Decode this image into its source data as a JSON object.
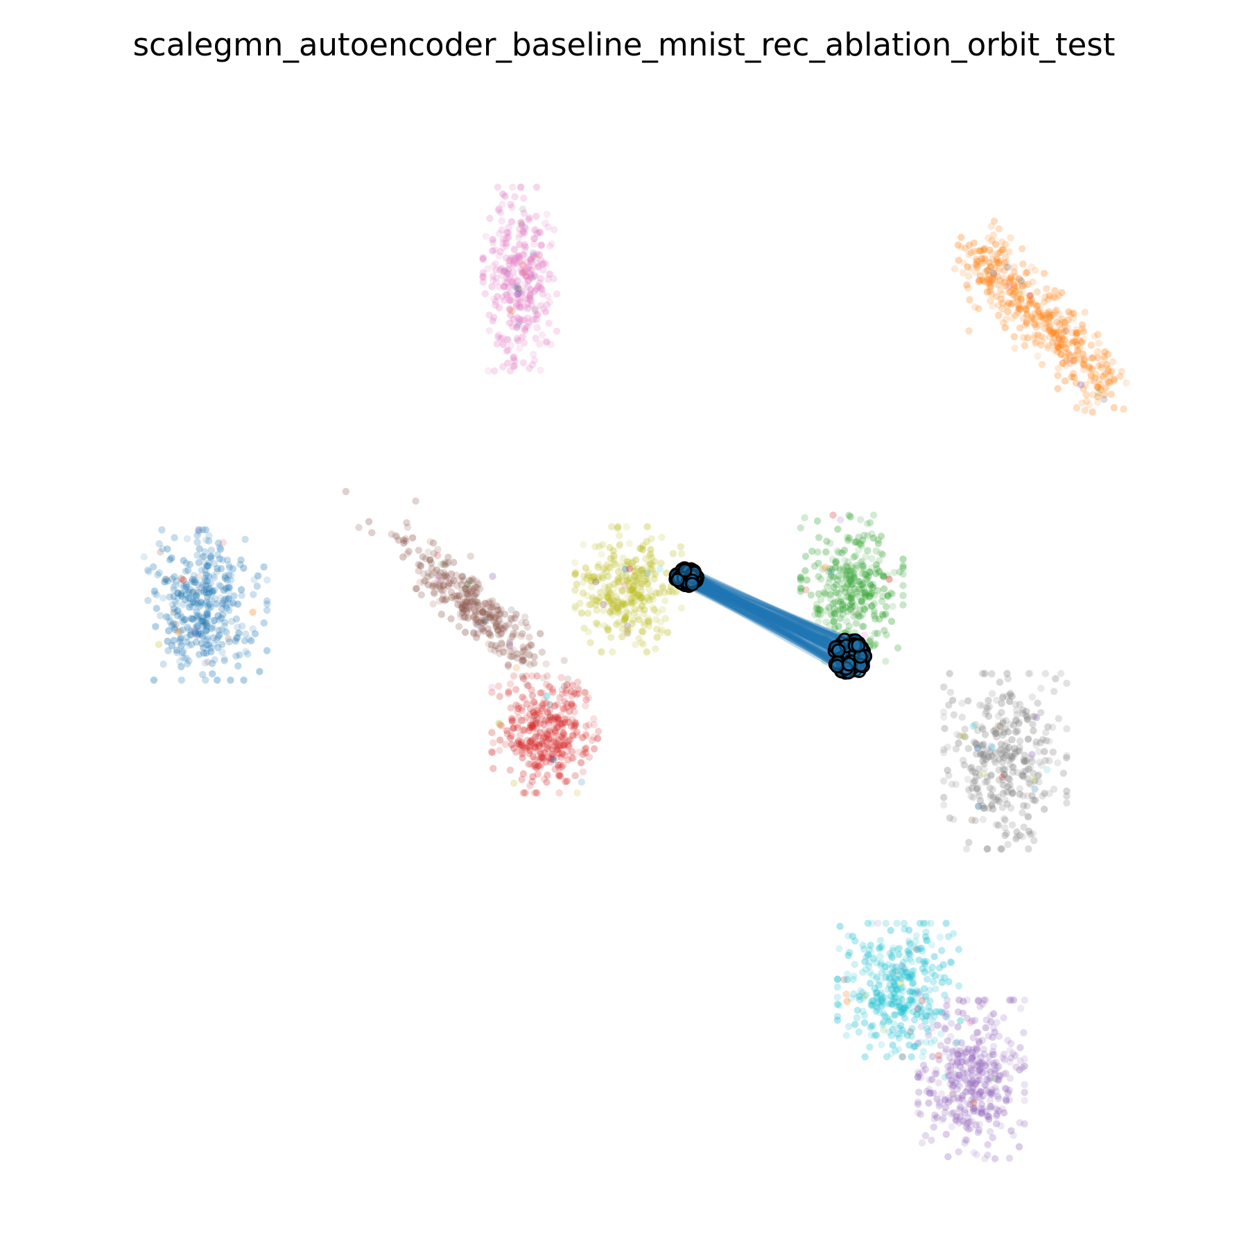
{
  "chart_data": {
    "type": "scatter",
    "title": "scalegmn_autoencoder_baseline_mnist_rec_ablation_orbit_test",
    "xlabel": "",
    "ylabel": "",
    "axes_visible": false,
    "grid": false,
    "legend": "none",
    "clusters": [
      {
        "id": "c0",
        "color": "#1f77b4",
        "center": [
          0.118,
          0.455
        ],
        "spread": [
          0.03,
          0.036
        ],
        "count": 380,
        "shape": "blob"
      },
      {
        "id": "c1",
        "color": "#ff7f0e",
        "center": [
          0.88,
          0.204
        ],
        "spread": [
          0.03,
          0.02
        ],
        "count": 440,
        "shape": "band"
      },
      {
        "id": "c2",
        "color": "#2ca02c",
        "center": [
          0.708,
          0.44
        ],
        "spread": [
          0.025,
          0.035
        ],
        "count": 330,
        "shape": "blob"
      },
      {
        "id": "c3",
        "color": "#d62728",
        "center": [
          0.428,
          0.571
        ],
        "spread": [
          0.026,
          0.028
        ],
        "count": 360,
        "shape": "blob"
      },
      {
        "id": "c4",
        "color": "#9467bd",
        "center": [
          0.817,
          0.88
        ],
        "spread": [
          0.026,
          0.038
        ],
        "count": 390,
        "shape": "blob"
      },
      {
        "id": "c5",
        "color": "#8c564b",
        "center": [
          0.361,
          0.455
        ],
        "spread": [
          0.034,
          0.012
        ],
        "count": 340,
        "shape": "diag"
      },
      {
        "id": "c6",
        "color": "#e377c2",
        "center": [
          0.405,
          0.163
        ],
        "spread": [
          0.018,
          0.044
        ],
        "count": 330,
        "shape": "blob"
      },
      {
        "id": "c7",
        "color": "#7f7f7f",
        "center": [
          0.848,
          0.595
        ],
        "spread": [
          0.03,
          0.042
        ],
        "count": 360,
        "shape": "blob"
      },
      {
        "id": "c8",
        "color": "#bcbd22",
        "center": [
          0.504,
          0.441
        ],
        "spread": [
          0.026,
          0.03
        ],
        "count": 330,
        "shape": "blob"
      },
      {
        "id": "c9",
        "color": "#17becf",
        "center": [
          0.751,
          0.8
        ],
        "spread": [
          0.03,
          0.032
        ],
        "count": 360,
        "shape": "blob"
      }
    ],
    "orbit": {
      "fill_color": "#1f77b4",
      "marker_color": "#000000",
      "start": [
        0.557,
        0.43
      ],
      "end": [
        0.706,
        0.501
      ]
    }
  }
}
